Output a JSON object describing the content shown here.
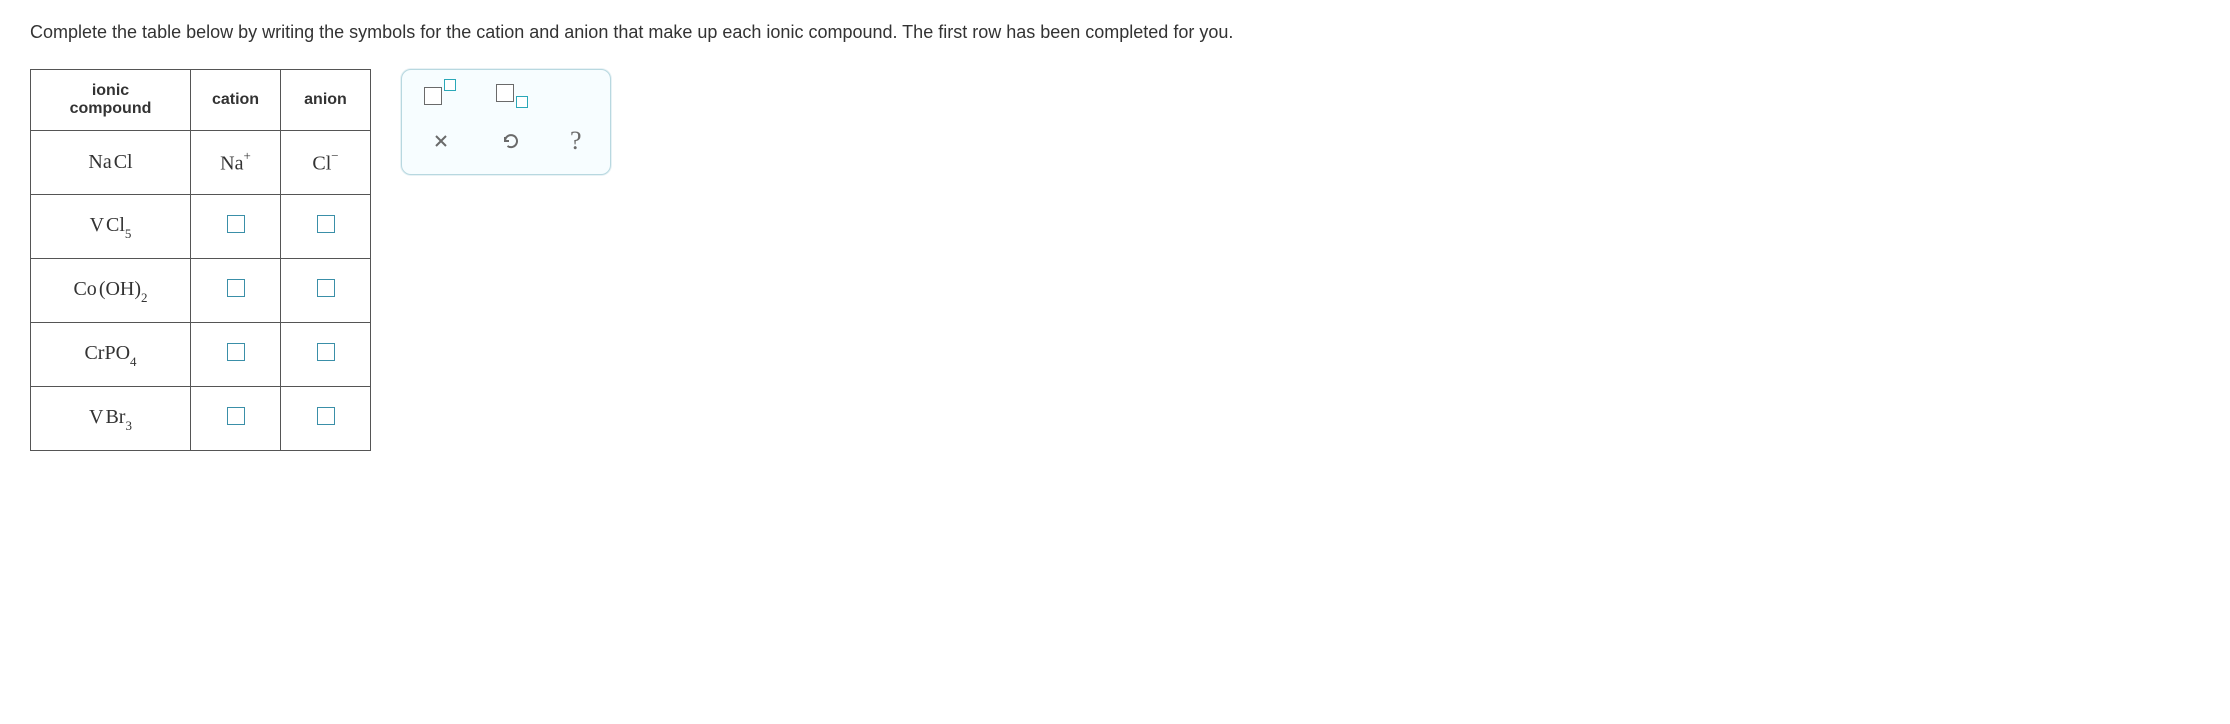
{
  "instruction": "Complete the table below by writing the symbols for the cation and anion that make up each ionic compound. The first row has been completed for you.",
  "table": {
    "headers": {
      "c0": "ionic compound",
      "c1": "cation",
      "c2": "anion"
    },
    "rows": [
      {
        "compound": {
          "pre": "Na",
          "sub": "",
          "post": "Cl",
          "sub2": ""
        },
        "cation": {
          "base": "Na",
          "sup": "+"
        },
        "anion": {
          "base": "Cl",
          "sup": "−"
        }
      },
      {
        "compound": {
          "pre": "V",
          "sub": "",
          "post": "Cl",
          "sub2": "5"
        },
        "cation": null,
        "anion": null
      },
      {
        "compound": {
          "pre": "Co",
          "sub": "",
          "post": "(OH)",
          "sub2": "2"
        },
        "cation": null,
        "anion": null
      },
      {
        "compound": {
          "pre": "CrPO",
          "sub": "",
          "post": "",
          "sub2": "4"
        },
        "cation": null,
        "anion": null
      },
      {
        "compound": {
          "pre": "V",
          "sub": "",
          "post": "Br",
          "sub2": "3"
        },
        "cation": null,
        "anion": null
      }
    ]
  },
  "tools": {
    "superscript": "superscript",
    "subscript": "subscript",
    "clear": "clear",
    "reset": "reset",
    "help": "?"
  },
  "colors": {
    "input_border": "#3a8fa8",
    "panel_border": "#b8d8e0",
    "panel_bg": "#f7fdff",
    "table_border": "#555555",
    "text": "#333333",
    "icon": "#6a6a6a",
    "accent": "#2aa8b8"
  }
}
